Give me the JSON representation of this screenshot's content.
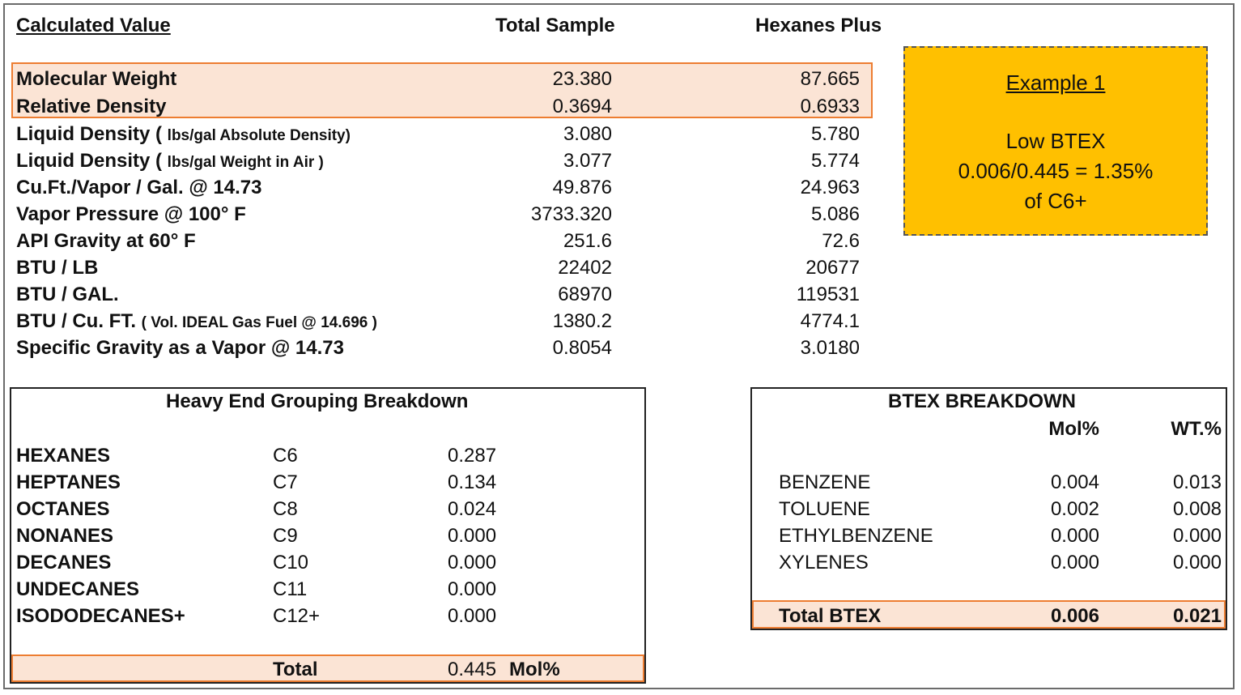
{
  "header": {
    "calculated_value": "Calculated Value",
    "total_sample": "Total Sample",
    "hexanes_plus": "Hexanes Plus"
  },
  "rows": [
    {
      "label": "Molecular Weight",
      "note": "",
      "total": "23.380",
      "hexanes": "87.665"
    },
    {
      "label": "Relative Density",
      "note": "",
      "total": "0.3694",
      "hexanes": "0.6933"
    },
    {
      "label": "Liquid Density (",
      "note": "lbs/gal Absolute Density)",
      "total": "3.080",
      "hexanes": "5.780"
    },
    {
      "label": "Liquid Density (",
      "note": "lbs/gal Weight in Air )",
      "total": "3.077",
      "hexanes": "5.774"
    },
    {
      "label": "Cu.Ft./Vapor / Gal. @ 14.73",
      "note": "",
      "total": "49.876",
      "hexanes": "24.963"
    },
    {
      "label": "Vapor Pressure @ 100° F",
      "note": "",
      "total": "3733.320",
      "hexanes": "5.086"
    },
    {
      "label": "API Gravity at 60° F",
      "note": "",
      "total": "251.6",
      "hexanes": "72.6"
    },
    {
      "label": "BTU / LB",
      "note": "",
      "total": "22402",
      "hexanes": "20677"
    },
    {
      "label": "BTU / GAL.",
      "note": "",
      "total": "68970",
      "hexanes": "119531"
    },
    {
      "label": "BTU / Cu. FT.",
      "note": "( Vol. IDEAL Gas Fuel @ 14.696 )",
      "total": "1380.2",
      "hexanes": "4774.1"
    },
    {
      "label": "Specific Gravity as a Vapor @ 14.73",
      "note": "",
      "total": "0.8054",
      "hexanes": "3.0180"
    }
  ],
  "example": {
    "title": "Example 1",
    "line1": "Low BTEX",
    "line2": "0.006/0.445 = 1.35%",
    "line3": "of C6+"
  },
  "heavy_end": {
    "title": "Heavy End Grouping Breakdown",
    "rows": [
      {
        "name": "HEXANES",
        "carbon": "C6",
        "value": "0.287"
      },
      {
        "name": "HEPTANES",
        "carbon": "C7",
        "value": "0.134"
      },
      {
        "name": "OCTANES",
        "carbon": "C8",
        "value": "0.024"
      },
      {
        "name": "NONANES",
        "carbon": "C9",
        "value": "0.000"
      },
      {
        "name": "DECANES",
        "carbon": "C10",
        "value": "0.000"
      },
      {
        "name": "UNDECANES",
        "carbon": "C11",
        "value": "0.000"
      },
      {
        "name": "ISODODECANES+",
        "carbon": "C12+",
        "value": "0.000"
      }
    ],
    "total_label": "Total",
    "total_value": "0.445",
    "total_unit": "Mol%"
  },
  "btex": {
    "title": "BTEX BREAKDOWN",
    "col_mol": "Mol%",
    "col_wt": "WT.%",
    "rows": [
      {
        "name": "BENZENE",
        "mol": "0.004",
        "wt": "0.013"
      },
      {
        "name": "TOLUENE",
        "mol": "0.002",
        "wt": "0.008"
      },
      {
        "name": "ETHYLBENZENE",
        "mol": "0.000",
        "wt": "0.000"
      },
      {
        "name": "XYLENES",
        "mol": "0.000",
        "wt": "0.000"
      }
    ],
    "total_label": "Total BTEX",
    "total_mol": "0.006",
    "total_wt": "0.021"
  },
  "colors": {
    "highlight_fill": "#fbe4d5",
    "highlight_border": "#ed7d31",
    "example_fill": "#ffc000"
  }
}
